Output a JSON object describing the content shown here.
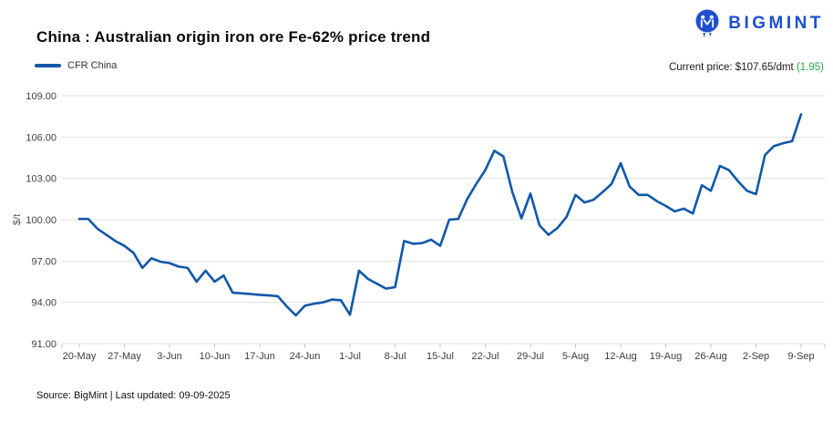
{
  "header": {
    "title": "China : Australian origin iron ore Fe-62% price trend",
    "logo": {
      "text": "BIGMINT",
      "color": "#1d4fd0"
    }
  },
  "legend": {
    "label": "CFR China",
    "swatch_color": "#1158a9"
  },
  "current_price": {
    "label": "Current price: $107.65/dmt",
    "change": "(1.95)",
    "change_color": "#2aa84a",
    "value": 107.65,
    "change_value": 1.95
  },
  "footer": {
    "source": "Source: BigMint | Last updated: 09-09-2025"
  },
  "chart_data": {
    "type": "line",
    "title": "China : Australian origin iron ore Fe-62% price trend",
    "xlabel": "",
    "ylabel": "$/t",
    "ylim": [
      91,
      109
    ],
    "ytick_step": 3,
    "ytick_labels": [
      "91.00",
      "94.00",
      "97.00",
      "100.00",
      "103.00",
      "106.00",
      "109.00"
    ],
    "x_tick_labels": [
      "20-May",
      "27-May",
      "3-Jun",
      "10-Jun",
      "17-Jun",
      "24-Jun",
      "1-Jul",
      "8-Jul",
      "15-Jul",
      "22-Jul",
      "29-Jul",
      "5-Aug",
      "12-Aug",
      "19-Aug",
      "26-Aug",
      "2-Sep",
      "9-Sep"
    ],
    "points_per_tick": 5,
    "grid": "horizontal",
    "legend_position": "top-left",
    "series": [
      {
        "name": "CFR China",
        "color": "#1158a9",
        "values": [
          100.05,
          100.05,
          99.35,
          98.9,
          98.45,
          98.1,
          97.6,
          96.5,
          97.2,
          96.95,
          96.85,
          96.6,
          96.5,
          95.5,
          96.3,
          95.5,
          95.95,
          94.7,
          94.65,
          94.6,
          94.55,
          94.5,
          94.45,
          93.7,
          93.05,
          93.75,
          93.9,
          94.0,
          94.2,
          94.15,
          93.1,
          96.3,
          95.7,
          95.35,
          95.0,
          95.1,
          98.45,
          98.25,
          98.3,
          98.55,
          98.1,
          100.0,
          100.05,
          101.5,
          102.6,
          103.6,
          105.0,
          104.6,
          102.0,
          100.1,
          101.9,
          99.6,
          98.9,
          99.4,
          100.2,
          101.8,
          101.25,
          101.45,
          102.0,
          102.6,
          104.1,
          102.4,
          101.8,
          101.8,
          101.35,
          101.0,
          100.6,
          100.8,
          100.45,
          102.5,
          102.1,
          103.9,
          103.6,
          102.8,
          102.1,
          101.85,
          104.7,
          105.35,
          105.55,
          105.7,
          107.65
        ]
      }
    ]
  }
}
